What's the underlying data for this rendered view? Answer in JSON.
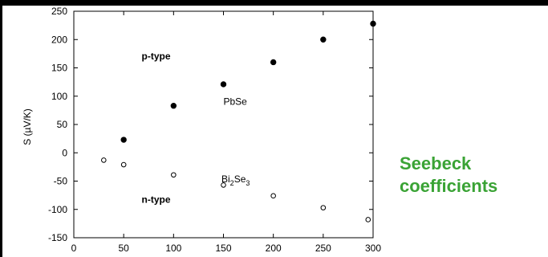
{
  "side_title": {
    "line1": "Seebeck",
    "line2": "coefficients"
  },
  "colors": {
    "side_title": "#3aa335",
    "points": "#000000"
  },
  "chart_data": {
    "type": "scatter",
    "title": "",
    "xlabel": "",
    "ylabel": "S (µV/K)",
    "xlim": [
      0,
      300
    ],
    "ylim": [
      -150,
      250
    ],
    "x_ticks": [
      0,
      50,
      100,
      150,
      200,
      250,
      300
    ],
    "y_ticks": [
      -150,
      -100,
      -50,
      0,
      50,
      100,
      150,
      200,
      250
    ],
    "grid": false,
    "series": [
      {
        "name": "PbSe",
        "marker": "filled-circle",
        "x": [
          50,
          100,
          150,
          200,
          250,
          300
        ],
        "y": [
          23,
          83,
          121,
          160,
          200,
          228
        ]
      },
      {
        "name": "Bi2Se3",
        "marker": "open-circle",
        "x": [
          30,
          50,
          100,
          150,
          200,
          250,
          295
        ],
        "y": [
          -13,
          -21,
          -39,
          -57,
          -76,
          -97,
          -118
        ]
      }
    ],
    "annotations": [
      {
        "text": "p-type",
        "x": 68,
        "y": 165,
        "bold": true
      },
      {
        "text": "PbSe",
        "x": 150,
        "y": 85,
        "bold": false
      },
      {
        "text": "n-type",
        "x": 68,
        "y": -88,
        "bold": true
      }
    ],
    "bi2se3_label": {
      "base": "Bi",
      "sub1": "2",
      "mid": "Se",
      "sub2": "3",
      "x": 148,
      "y": -52
    }
  }
}
